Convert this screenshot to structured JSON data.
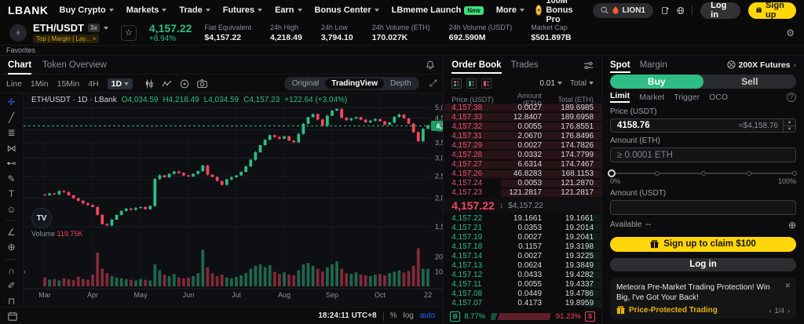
{
  "colors": {
    "green": "#2ebd85",
    "red": "#f6465d",
    "yellow": "#ffd60a",
    "blue": "#2962ff"
  },
  "nav": {
    "logo": "LBANK",
    "items": [
      {
        "label": "Buy Crypto",
        "caret": true
      },
      {
        "label": "Markets",
        "caret": true
      },
      {
        "label": "Trade",
        "caret": true
      },
      {
        "label": "Futures",
        "caret": true
      },
      {
        "label": "Earn",
        "caret": true
      },
      {
        "label": "Bonus Center",
        "caret": true
      },
      {
        "label": "LBmeme Launch",
        "badge": "New"
      },
      {
        "label": "More",
        "caret": true
      }
    ],
    "bonus_label": "100M Bonus Pro",
    "search_value": "LION1",
    "login_label": "Log in",
    "signup_label": "Sign up"
  },
  "ticker": {
    "pair": "ETH/USDT",
    "leverage": "3x",
    "tags": "Top | Margin | Lay... >",
    "price": "4,157.22",
    "change": "+8.94%",
    "stats": [
      {
        "label": "Fiat Equivalent",
        "value": "$4,157.22"
      },
      {
        "label": "24h High",
        "value": "4,218.49"
      },
      {
        "label": "24h Low",
        "value": "3,794.10"
      },
      {
        "label": "24h Volume (ETH)",
        "value": "170.027K"
      },
      {
        "label": "24h Volume (USDT)",
        "value": "692.590M"
      },
      {
        "label": "Market Cap",
        "value": "$501.897B"
      }
    ]
  },
  "favorites_label": "Favorites",
  "chart": {
    "tabs": [
      "Chart",
      "Token Overview"
    ],
    "active_tab": "Chart",
    "timeframes": [
      "Line",
      "1Min",
      "15Min",
      "4H"
    ],
    "active_timeframe": "1D",
    "toolbar_icons": [
      "candle-style",
      "indicators",
      "chart-style",
      "screenshot"
    ],
    "views": [
      "Original",
      "TradingView",
      "Depth"
    ],
    "active_view": "TradingView",
    "legend": {
      "pair": "ETH/USDT · 1D · LBank",
      "o": "O4,034.59",
      "h": "H4,218.49",
      "l": "L4,034.59",
      "c": "C4,157.23",
      "chg": "+122.64 (+3.04%)"
    },
    "volume_label": "Volume",
    "volume_value": "119.75K",
    "drawing_tools": [
      "crosshair",
      "trend-line",
      "fib-retracement",
      "xabcd-pattern",
      "long-position",
      "brush",
      "text",
      "emoji",
      "ruler",
      "zoom-in",
      "magnet",
      "draw-pencil",
      "lock-all"
    ],
    "clock": "18:24:11 UTC+8",
    "scale_percent": "%",
    "scale_log": "log",
    "scale_auto": "auto"
  },
  "chart_data": {
    "type": "candlestick",
    "pair": "ETH/USDT",
    "interval": "1D",
    "scale": "log",
    "price_line": 4157.23,
    "price_badge": "4,157.23",
    "y_ticks": [
      5000,
      4500,
      4000,
      3500,
      3000,
      2500,
      2000,
      1500
    ],
    "y_range_approx": [
      1430,
      5330
    ],
    "closes": [
      2060,
      2100,
      2080,
      2150,
      2130,
      2060,
      2000,
      1950,
      1900,
      1870,
      1830,
      1690,
      1540,
      1520,
      1610,
      1690,
      1760,
      1800,
      1780,
      1810,
      1830,
      1790,
      1850,
      2430,
      2520,
      2470,
      2560,
      2620,
      2580,
      2520,
      2490,
      2560,
      2630,
      2780,
      2540,
      2480,
      2380,
      2290,
      2420,
      2470,
      2520,
      2610,
      2760,
      2950,
      3180,
      3420,
      3610,
      3780,
      3710,
      3650,
      3740,
      3580,
      3520,
      3830,
      4240,
      4540,
      4680,
      4430,
      4160,
      4600,
      4850,
      4930,
      4510,
      4400,
      4470,
      4540,
      4420,
      4310,
      4380,
      4450,
      4350,
      4200,
      4300,
      4550,
      4660,
      4480,
      4250,
      3900,
      3560,
      4030,
      4157.23
    ],
    "last_candle": {
      "o": 4034.59,
      "h": 4218.49,
      "l": 4034.59,
      "c": 4157.23
    },
    "volumes_k": [
      60,
      45,
      50,
      40,
      55,
      48,
      42,
      65,
      50,
      45,
      80,
      230,
      120,
      90,
      70,
      60,
      55,
      50,
      45,
      40,
      50,
      45,
      40,
      150,
      110,
      80,
      70,
      85,
      60,
      55,
      60,
      70,
      90,
      250,
      130,
      90,
      70,
      80,
      60,
      55,
      65,
      75,
      90,
      120,
      140,
      150,
      130,
      145,
      100,
      85,
      95,
      80,
      75,
      110,
      150,
      160,
      140,
      120,
      100,
      130,
      150,
      170,
      120,
      90,
      85,
      95,
      80,
      75,
      70,
      80,
      85,
      75,
      90,
      100,
      110,
      95,
      105,
      140,
      260,
      120,
      119.75
    ],
    "vol_max_k": 300,
    "vol_ticks": [
      {
        "v": 200,
        "label": "200 K"
      },
      {
        "v": 100,
        "label": "100 K"
      }
    ],
    "month_marks": [
      {
        "label": "Mar",
        "i": 0
      },
      {
        "label": "Apr",
        "i": 10
      },
      {
        "label": "May",
        "i": 20
      },
      {
        "label": "Jun",
        "i": 30
      },
      {
        "label": "Jul",
        "i": 40
      },
      {
        "label": "Aug",
        "i": 50
      },
      {
        "label": "Sep",
        "i": 60
      },
      {
        "label": "Oct",
        "i": 70
      },
      {
        "label": "22",
        "i": 80
      }
    ]
  },
  "order_book": {
    "tabs": [
      "Order Book",
      "Trades"
    ],
    "active_tab": "Order Book",
    "precision": "0.01",
    "mode": "Total",
    "headers": [
      "Price (USDT)",
      "Amount (ETH)",
      "Total (ETH)"
    ],
    "asks": [
      [
        "4,157.38",
        "0.0027",
        "189.6985"
      ],
      [
        "4,157.33",
        "12.8407",
        "189.6958"
      ],
      [
        "4,157.32",
        "0.0055",
        "176.8551"
      ],
      [
        "4,157.31",
        "2.0670",
        "176.8496"
      ],
      [
        "4,157.29",
        "0.0027",
        "174.7826"
      ],
      [
        "4,157.28",
        "0.0332",
        "174.7799"
      ],
      [
        "4,157.27",
        "6.6314",
        "174.7467"
      ],
      [
        "4,157.26",
        "46.8283",
        "168.1153"
      ],
      [
        "4,157.24",
        "0.0053",
        "121.2870"
      ],
      [
        "4,157.23",
        "121.2817",
        "121.2817"
      ]
    ],
    "mid_price": "4,157.22",
    "mid_fiat": "$4,157.22",
    "bids": [
      [
        "4,157.22",
        "19.1661",
        "19.1661"
      ],
      [
        "4,157.21",
        "0.0353",
        "19.2014"
      ],
      [
        "4,157.19",
        "0.0027",
        "19.2041"
      ],
      [
        "4,157.18",
        "0.1157",
        "19.3198"
      ],
      [
        "4,157.14",
        "0.0027",
        "19.3225"
      ],
      [
        "4,157.13",
        "0.0624",
        "19.3849"
      ],
      [
        "4,157.12",
        "0.0433",
        "19.4282"
      ],
      [
        "4,157.11",
        "0.0055",
        "19.4337"
      ],
      [
        "4,157.08",
        "0.0449",
        "19.4786"
      ],
      [
        "4,157.07",
        "0.4173",
        "19.8959"
      ]
    ],
    "buy_label": "B",
    "buy_pct": "8.77%",
    "sell_pct": "91.23%",
    "sell_label": "S",
    "buy_pct_num": 8.77,
    "sell_pct_num": 91.23
  },
  "trade": {
    "tab_spot": "Spot",
    "tab_margin": "Margin",
    "futures_link": "200X Futures",
    "buy_label": "Buy",
    "sell_label": "Sell",
    "order_types": [
      "Limit",
      "Market",
      "Trigger",
      "OCO"
    ],
    "active_type": "Limit",
    "price_label": "Price (USDT)",
    "price_value": "4158.76",
    "price_approx": "≈$4,158.76",
    "amount_label": "Amount (ETH)",
    "amount_placeholder": "≥ 0.0001 ETH",
    "pct_min": "0%",
    "pct_max": "100%",
    "amount_usdt_label": "Amount (USDT)",
    "available_label": "Available",
    "available_value": "--",
    "claim_label": "Sign up to claim $100",
    "login_label": "Log in",
    "ad_text": "Meteora Pre-Market Trading Protection! Win Big, I've Got Your Back!",
    "ad_tag": "Price-Protected Trading",
    "ad_page": "1/4"
  }
}
